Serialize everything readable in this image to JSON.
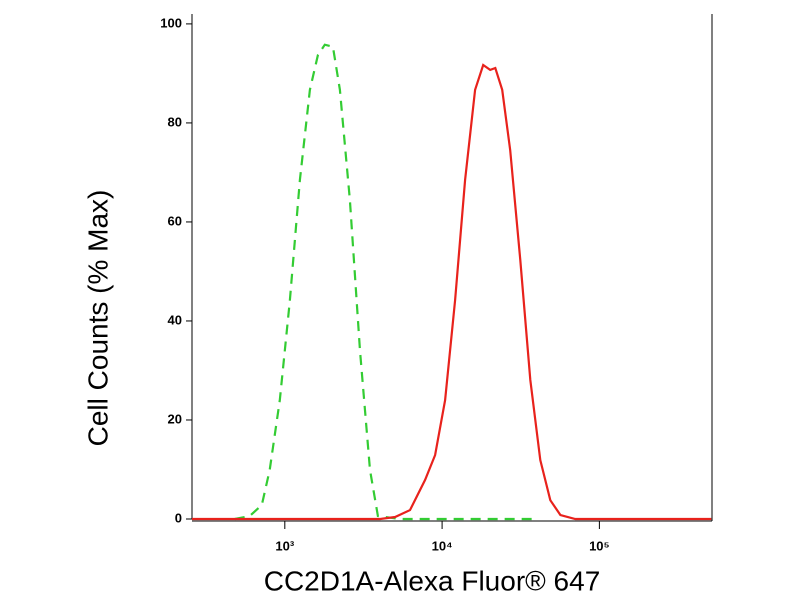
{
  "chart_data": {
    "type": "line",
    "x_label": "CC2D1A-Alexa Fluor® 647",
    "y_label": "Cell Counts (% Max)",
    "xscale": "log",
    "xlim": [
      257,
      520000
    ],
    "ylim": [
      0,
      102
    ],
    "xticks": [
      {
        "value": 1000,
        "label": "10³"
      },
      {
        "value": 10000,
        "label": "10⁴"
      },
      {
        "value": 100000,
        "label": "10⁵"
      }
    ],
    "yticks": [
      0,
      20,
      40,
      60,
      80,
      100
    ],
    "series": [
      {
        "color": "#33cc33",
        "dashed": true,
        "x": [
          481,
          598,
          714,
          802,
          929,
          1076,
          1247,
          1443,
          1623,
          1797,
          2022,
          2240,
          2594,
          3005,
          3478,
          3909,
          5400,
          40000
        ],
        "values": [
          0,
          0.6,
          2.8,
          9.9,
          24,
          44,
          68.5,
          86.7,
          93.7,
          95.8,
          95.4,
          86.7,
          64.4,
          34,
          9.9,
          0.6,
          0,
          0
        ]
      },
      {
        "color": "#e8221c",
        "dashed": false,
        "x": [
          257,
          4040,
          5023,
          6252,
          7798,
          9020,
          10450,
          12100,
          14000,
          16220,
          18240,
          20220,
          21780,
          24110,
          27110,
          31400,
          36370,
          42100,
          48760,
          56480,
          70310,
          515000
        ],
        "values": [
          0,
          0,
          0.4,
          1.8,
          7.9,
          12.9,
          24,
          44.2,
          68.5,
          86.7,
          91.7,
          90.7,
          91.1,
          86.7,
          74.5,
          52.3,
          28.1,
          11.9,
          3.8,
          0.8,
          0,
          0
        ]
      }
    ]
  }
}
